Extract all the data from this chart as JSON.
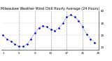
{
  "title": "Milwaukee Weather Wind Chill Hourly Average (24 Hours)",
  "title_fontsize": 3.5,
  "line_color": "#0000cc",
  "bg_color": "#ffffff",
  "grid_color": "#8888aa",
  "hours": [
    1,
    2,
    3,
    4,
    5,
    6,
    7,
    8,
    9,
    10,
    11,
    12,
    13,
    14,
    15,
    16,
    17,
    18,
    19,
    20,
    21,
    22,
    23,
    24
  ],
  "values": [
    20,
    17,
    15,
    13,
    11,
    11,
    13,
    17,
    22,
    26,
    28,
    27,
    25,
    24,
    26,
    30,
    35,
    37,
    35,
    32,
    27,
    21,
    17,
    14
  ],
  "ylim": [
    8,
    40
  ],
  "yticks": [
    10,
    20,
    30,
    40
  ],
  "ytick_labels": [
    "10",
    "20",
    "30",
    "40"
  ],
  "xtick_positions": [
    1,
    5,
    9,
    13,
    17,
    21,
    25
  ],
  "xtick_labels": [
    "1",
    "5",
    "9",
    "13",
    "17",
    "21",
    "25"
  ],
  "vgrid_positions": [
    5,
    9,
    13,
    17,
    21
  ],
  "marker_size": 1.8,
  "line_width": 0.5,
  "tick_fontsize": 3.0
}
